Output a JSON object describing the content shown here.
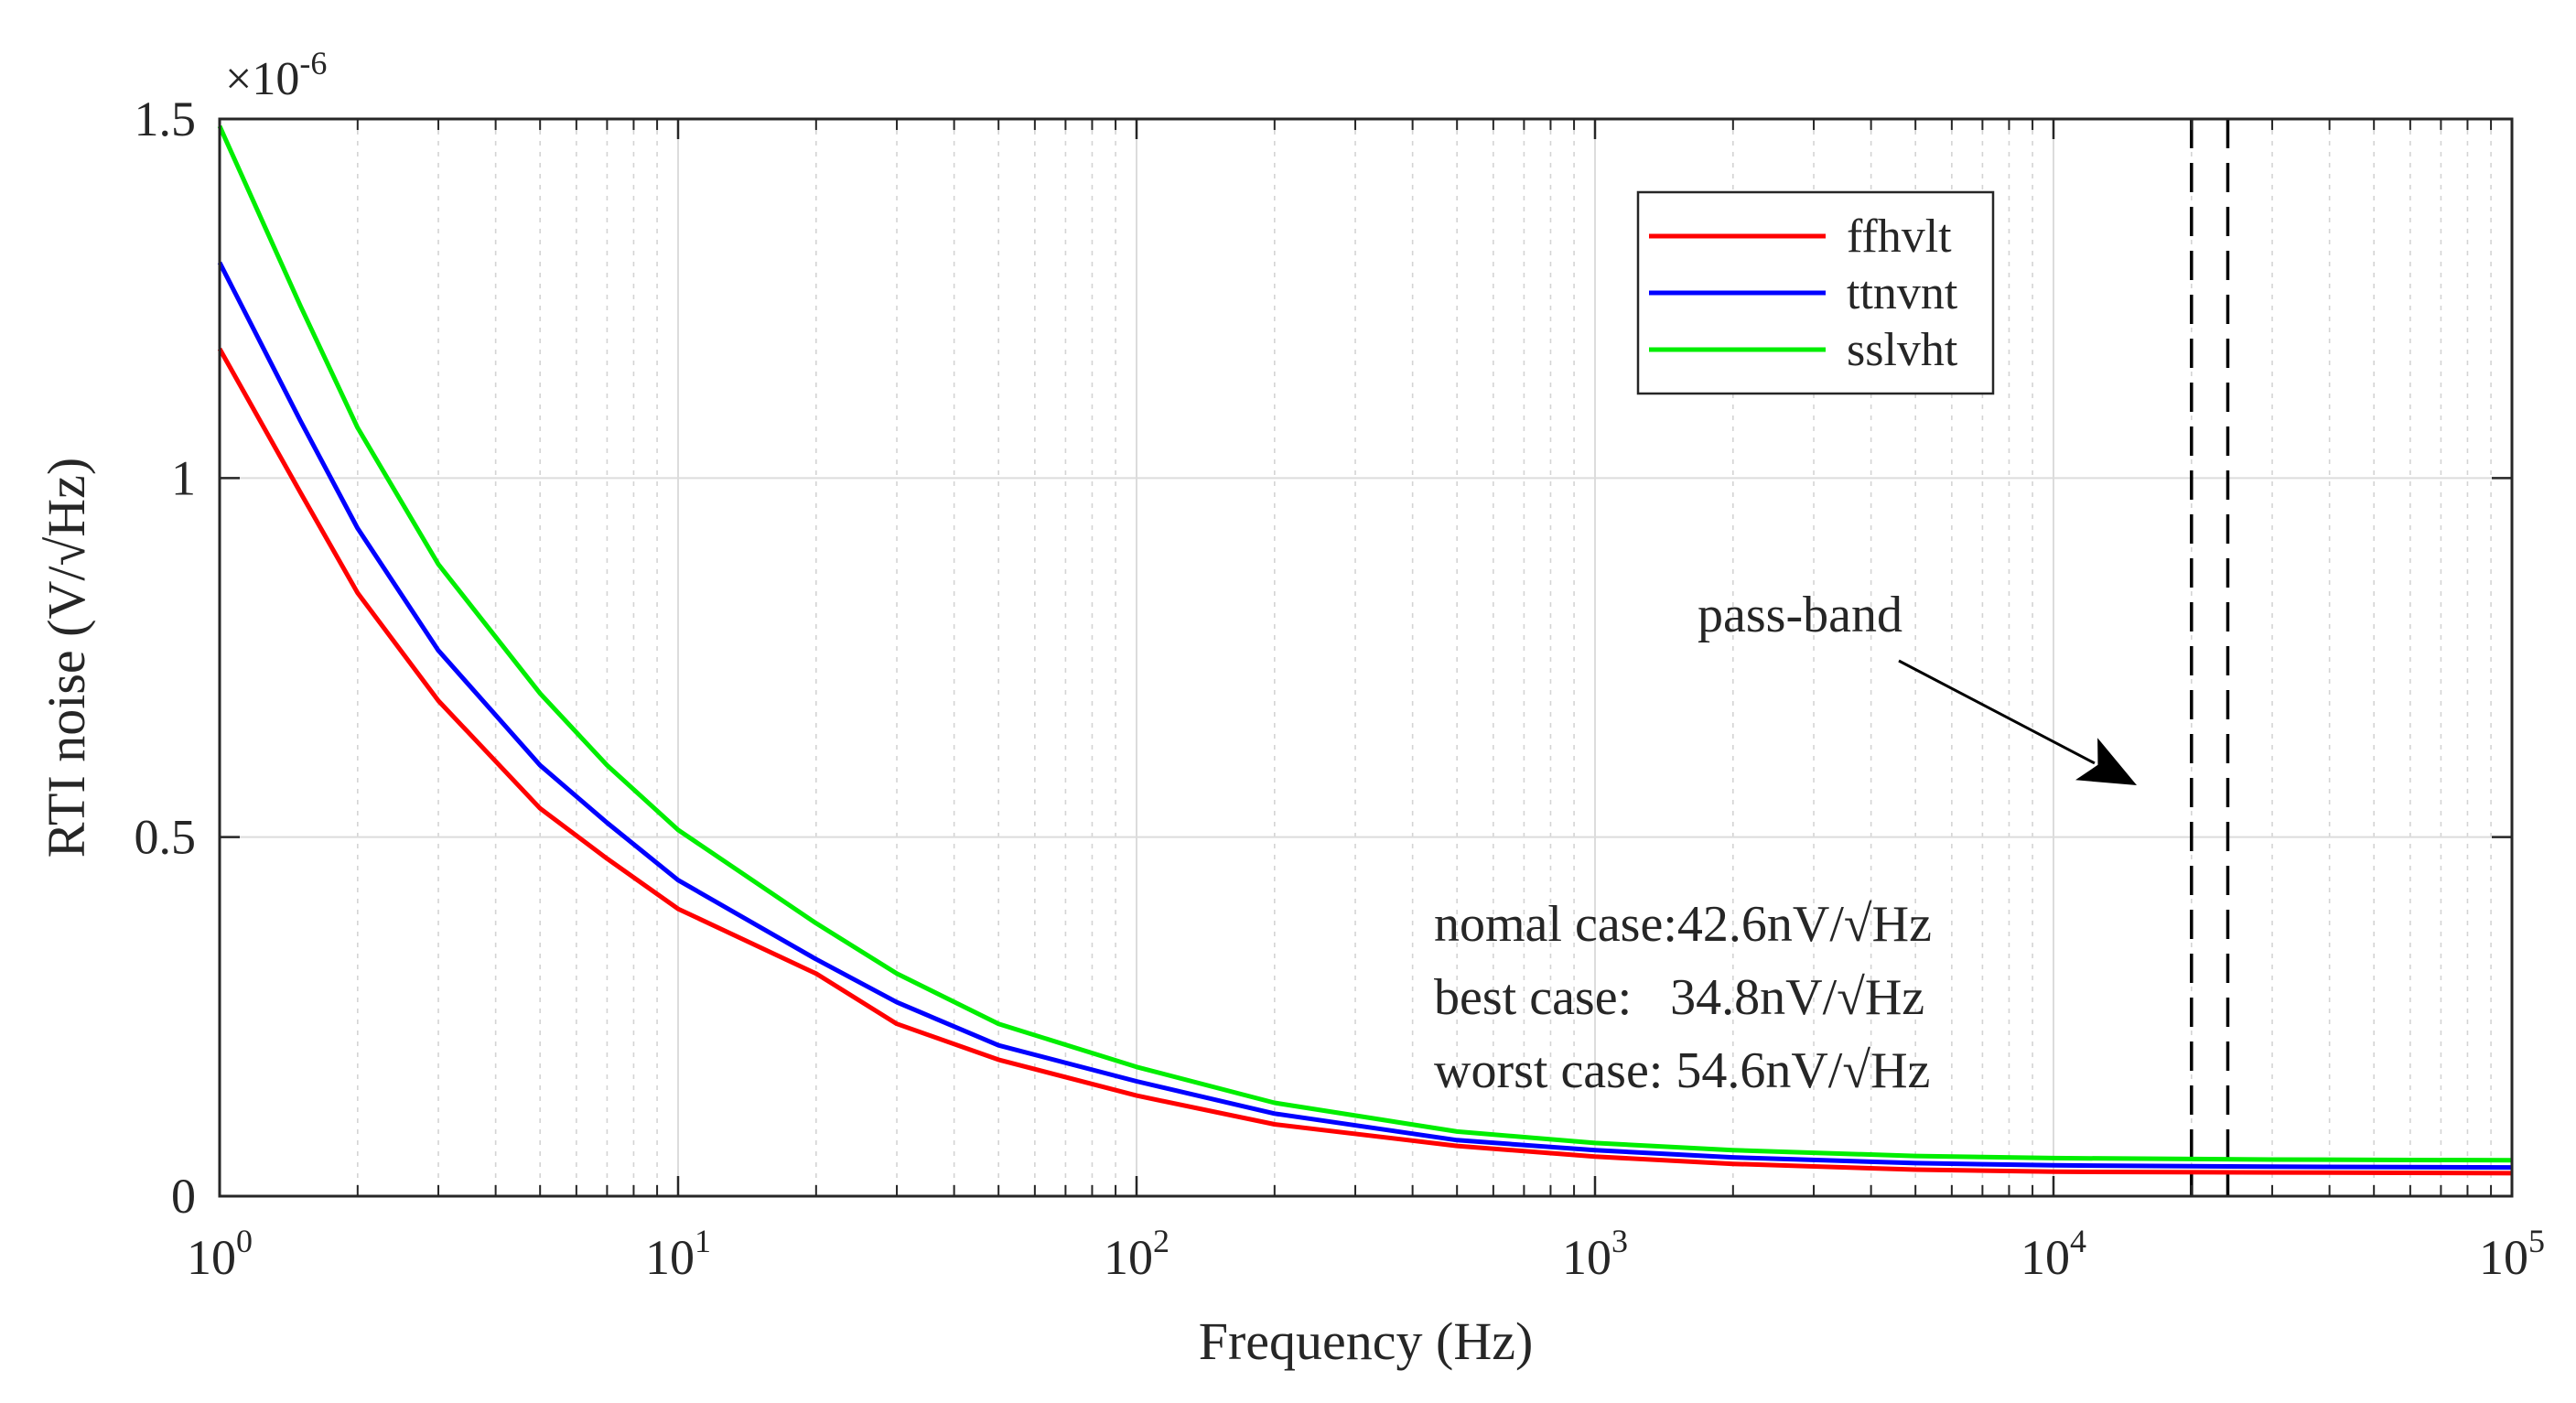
{
  "chart_data": {
    "type": "line",
    "title": "",
    "xlabel": "Frequency (Hz)",
    "ylabel": "RTI noise (V/√Hz)",
    "xscale": "log",
    "xlim": [
      1,
      100000
    ],
    "ylim": [
      0,
      1.5
    ],
    "y_multiplier": "×10",
    "y_multiplier_exp": "-6",
    "x_ticks": [
      {
        "base": "10",
        "exp": "0",
        "value": 1
      },
      {
        "base": "10",
        "exp": "1",
        "value": 10
      },
      {
        "base": "10",
        "exp": "2",
        "value": 100
      },
      {
        "base": "10",
        "exp": "3",
        "value": 1000
      },
      {
        "base": "10",
        "exp": "4",
        "value": 10000
      },
      {
        "base": "10",
        "exp": "5",
        "value": 100000
      }
    ],
    "y_ticks": [
      {
        "label": "0",
        "value": 0
      },
      {
        "label": "0.5",
        "value": 0.5
      },
      {
        "label": "1",
        "value": 1
      },
      {
        "label": "1.5",
        "value": 1.5
      }
    ],
    "grid": true,
    "legend_position": "top-right",
    "series": [
      {
        "name": "ffhvlt",
        "color": "#ff0000",
        "x": [
          1,
          1.5,
          2,
          3,
          5,
          7,
          10,
          20,
          30,
          50,
          100,
          200,
          500,
          1000,
          2000,
          5000,
          10000,
          30000,
          100000
        ],
        "y": [
          1.18,
          0.98,
          0.84,
          0.69,
          0.54,
          0.47,
          0.4,
          0.31,
          0.24,
          0.19,
          0.14,
          0.1,
          0.07,
          0.055,
          0.045,
          0.037,
          0.034,
          0.033,
          0.032
        ]
      },
      {
        "name": "ttnvnt",
        "color": "#0000ff",
        "x": [
          1,
          1.5,
          2,
          3,
          5,
          7,
          10,
          20,
          30,
          50,
          100,
          200,
          500,
          1000,
          2000,
          5000,
          10000,
          30000,
          100000
        ],
        "y": [
          1.3,
          1.08,
          0.93,
          0.76,
          0.6,
          0.52,
          0.44,
          0.33,
          0.27,
          0.21,
          0.16,
          0.115,
          0.078,
          0.064,
          0.054,
          0.046,
          0.043,
          0.041,
          0.04
        ]
      },
      {
        "name": "sslvht",
        "color": "#00ee00",
        "x": [
          1,
          1.5,
          2,
          3,
          5,
          7,
          10,
          20,
          30,
          50,
          100,
          200,
          500,
          1000,
          2000,
          5000,
          10000,
          30000,
          100000
        ],
        "y": [
          1.49,
          1.24,
          1.07,
          0.88,
          0.7,
          0.6,
          0.51,
          0.38,
          0.31,
          0.24,
          0.18,
          0.13,
          0.09,
          0.074,
          0.064,
          0.056,
          0.053,
          0.051,
          0.05
        ]
      }
    ],
    "vlines": [
      {
        "x": 20000,
        "style": "dashed",
        "color": "#000000"
      },
      {
        "x": 24000,
        "style": "dashed",
        "color": "#000000"
      }
    ],
    "annotations": {
      "arrow_label": "pass-band",
      "arrow_from": {
        "x": 5000,
        "y": 0.77
      },
      "arrow_to": {
        "x": 15000,
        "y": 0.57
      },
      "text_lines": [
        "nomal case:42.6nV/√Hz",
        "best case:   34.8nV/√Hz",
        "worst case: 54.6nV/√Hz"
      ]
    }
  }
}
